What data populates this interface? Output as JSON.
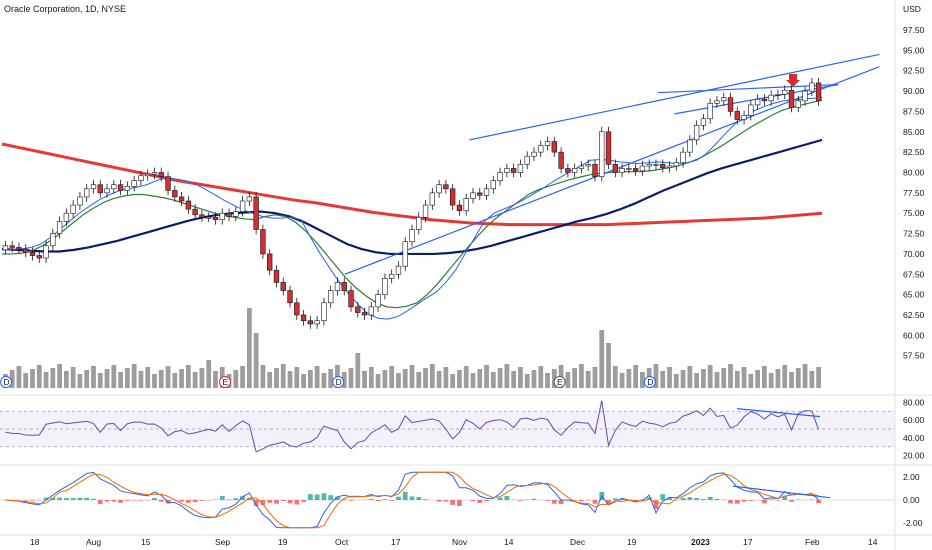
{
  "header": {
    "title": "Oracle Corporation, 1D, NYSE",
    "currency": "USD"
  },
  "colors": {
    "up": "#ffffff",
    "down": "#d32f2f",
    "wick": "#131722",
    "ma_fast": "#2962ff",
    "ma_mid": "#2e7d32",
    "ma_slow": "#0d1b6e",
    "ma_long": "#e53935",
    "trend": "#2962ff",
    "volume": "#8c8c8c",
    "rsi": "#5b4fb0",
    "arrow": "#d32f2f"
  },
  "chart_data": {
    "type": "candlestick",
    "title": "Oracle Corporation, 1D, NYSE",
    "y_unit": "USD",
    "ylim": [
      55.5,
      97.5
    ],
    "yticks": [
      "97.50",
      "95.00",
      "92.50",
      "90.00",
      "87.50",
      "85.00",
      "82.50",
      "80.00",
      "77.50",
      "75.00",
      "72.50",
      "70.00",
      "67.50",
      "65.00",
      "62.50",
      "60.00",
      "57.50"
    ],
    "xticks": [
      "18",
      "Aug",
      "15",
      "Sep",
      "19",
      "Oct",
      "17",
      "Nov",
      "14",
      "Dec",
      "19",
      "2023",
      "17",
      "Feb",
      "14"
    ],
    "closes": [
      71,
      70.8,
      70.6,
      70.2,
      69.8,
      69.5,
      71,
      72.5,
      74,
      75,
      76,
      77,
      78,
      78.5,
      77.5,
      78,
      78.5,
      77.8,
      78.3,
      79,
      79.6,
      79.8,
      80,
      79.5,
      77.8,
      77,
      76.5,
      75.5,
      74.8,
      74.5,
      74.5,
      74.2,
      75,
      74.6,
      75.2,
      76.5,
      77,
      73,
      70,
      68,
      66.5,
      65.5,
      64,
      62.5,
      61.8,
      61.4,
      61.8,
      64,
      65.5,
      66.5,
      65.5,
      63.5,
      62.8,
      62.5,
      63.5,
      65,
      67,
      67.5,
      68.5,
      71.5,
      73,
      74.5,
      76,
      77.5,
      78.5,
      78,
      76,
      75.3,
      76.8,
      77.5,
      77.2,
      78,
      79,
      80,
      80.5,
      80,
      81,
      82,
      82.5,
      83.3,
      83.8,
      82.5,
      80.5,
      80,
      80.5,
      80.8,
      81,
      79.5,
      85,
      81,
      80,
      80.5,
      80.5,
      80.2,
      80.8,
      81,
      81,
      80.6,
      80.8,
      81.2,
      82.5,
      84,
      85.8,
      86.6,
      88.5,
      88.8,
      89.2,
      87.5,
      86.5,
      87,
      88.3,
      89,
      88.8,
      89.5,
      89.6,
      90.1,
      88,
      88.8,
      90,
      91,
      88.8
    ],
    "ma_fast": [
      70.5,
      70.5,
      70.6,
      70.8,
      71.2,
      72,
      73,
      74,
      75,
      75.8,
      76.6,
      77.2,
      77.7,
      78,
      78.2,
      78.5,
      79,
      79.4,
      79.2,
      79,
      78.6,
      78,
      77.3,
      76.6,
      76,
      75.4,
      75,
      74.6,
      74.4,
      74.4,
      74.5,
      74.2,
      72,
      70,
      68.2,
      66.5,
      65,
      63.7,
      62.6,
      62.1,
      62,
      62.3,
      63,
      63.8,
      64.6,
      65.3,
      66.5,
      68,
      70,
      72,
      74,
      75,
      75.5,
      76,
      76.6,
      77.3,
      78,
      78.8,
      79.5,
      80.2,
      80.8,
      81.5,
      81.6,
      81.5,
      81.3,
      81.2,
      81.1,
      81.2,
      81.3,
      81.2,
      81.1,
      81.2,
      81.5,
      82.3,
      83.5,
      84.8,
      86,
      86.8,
      87.6,
      88.1,
      88.5,
      88.8,
      88.9,
      89,
      89.1,
      89.2
    ],
    "ma_mid": [
      70,
      70,
      70.1,
      70.4,
      71,
      71.8,
      72.8,
      73.8,
      74.8,
      75.6,
      76.3,
      76.8,
      77.1,
      77.3,
      77.3,
      77.1,
      76.9,
      76.6,
      76.2,
      75.8,
      75.4,
      75,
      74.7,
      74.5,
      74.3,
      74.2,
      74.6,
      74.8,
      74.6,
      73.9,
      72.8,
      71.5,
      70,
      68.5,
      67,
      65.8,
      64.8,
      64,
      63.5,
      63.4,
      63.6,
      64,
      65,
      66.3,
      67.8,
      69.3,
      70.8,
      72.2,
      73.5,
      74.6,
      75.5,
      76.4,
      77.3,
      77.9,
      78.3,
      78.7,
      79.1,
      79.4,
      79.7,
      79.9,
      80,
      80.1,
      80.1,
      80.1,
      80.2,
      80.4,
      80.6,
      80.9,
      81.3,
      81.8,
      82.5,
      83.2,
      84,
      84.8,
      85.6,
      86.3,
      87,
      87.6,
      88,
      88.3,
      88.6,
      88.9
    ],
    "ma_slow": [
      70.6,
      70.5,
      70.4,
      70.3,
      70.3,
      70.5,
      70.8,
      71.2,
      71.6,
      72.1,
      72.6,
      73.1,
      73.6,
      74.1,
      74.5,
      74.8,
      75,
      75.1,
      75.2,
      75,
      74.6,
      73.9,
      73,
      72.1,
      71.2,
      70.6,
      70.2,
      70,
      70,
      70,
      70,
      70.1,
      70.3,
      70.6,
      71,
      71.5,
      72,
      72.5,
      73,
      73.5,
      74,
      74.4,
      74.9,
      75.5,
      76.2,
      77,
      77.8,
      78.5,
      79.2,
      79.9,
      80.5,
      81,
      81.5,
      82,
      82.5,
      83,
      83.5,
      84
    ],
    "ma_long": [
      83.5,
      83,
      82.5,
      82,
      81.5,
      81,
      80.5,
      80,
      79.5,
      79,
      78.6,
      78.2,
      77.8,
      77.4,
      77,
      76.6,
      76.3,
      75.9,
      75.5,
      75.1,
      74.8,
      74.5,
      74.2,
      74,
      73.8,
      73.7,
      73.6,
      73.6,
      73.6,
      73.6,
      73.6,
      73.6,
      73.7,
      73.8,
      73.9,
      74,
      74.1,
      74.2,
      74.3,
      74.4,
      74.6,
      74.8,
      75
    ],
    "trendlines": [
      {
        "from": [
          0.57,
          84
        ],
        "to": [
          1.07,
          94.5
        ]
      },
      {
        "from": [
          0.418,
          67.5
        ],
        "to": [
          1.07,
          93
        ]
      },
      {
        "from": [
          0.82,
          87.2
        ],
        "to": [
          1.02,
          90.8
        ]
      },
      {
        "from": [
          0.8,
          89.8
        ],
        "to": [
          1.02,
          90.8
        ]
      }
    ],
    "events": [
      {
        "label": "D",
        "pos": 0.005
      },
      {
        "label": "E",
        "pos": 0.272
      },
      {
        "label": "D",
        "pos": 0.41
      },
      {
        "label": "E",
        "pos": 0.68
      },
      {
        "label": "D",
        "pos": 0.79
      }
    ],
    "rsi": {
      "yticks": [
        "80.00",
        "60.00",
        "40.00",
        "20.00"
      ],
      "ylim": [
        15,
        85
      ],
      "bands": [
        70,
        50,
        30
      ]
    },
    "macd": {
      "yticks": [
        "2.00",
        "0.00",
        "-2.00"
      ],
      "ylim": [
        -2.6,
        2.6
      ]
    }
  }
}
